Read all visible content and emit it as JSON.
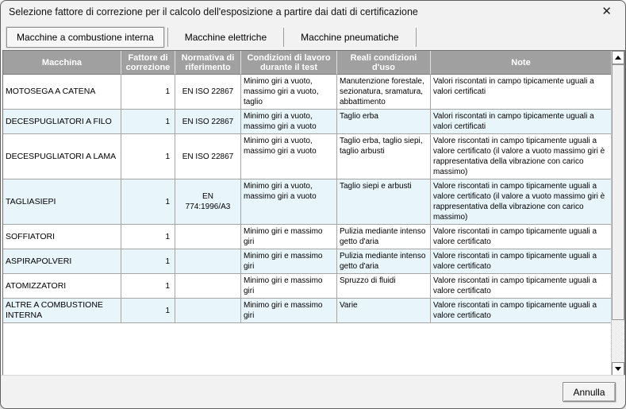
{
  "window": {
    "title": "Selezione fattore di correzione per il calcolo dell'esposizione a partire dai dati di certificazione",
    "close_glyph": "✕"
  },
  "tabs": [
    {
      "label": "Macchine a combustione interna",
      "active": true
    },
    {
      "label": "Macchine elettriche",
      "active": false
    },
    {
      "label": "Macchine pneumatiche",
      "active": false
    }
  ],
  "table": {
    "columns": [
      "Macchina",
      "Fattore di correzione",
      "Normativa di riferimento",
      "Condizioni di lavoro durante il test",
      "Reali condizioni d'uso",
      "Note"
    ],
    "rows": [
      {
        "macchina": "MOTOSEGA A CATENA",
        "fattore": "1",
        "normativa": "EN ISO 22867",
        "condizioni": "Minimo giri a vuoto, massimo giri a vuoto, taglio",
        "reali": "Manutenzione forestale, sezionatura, sramatura, abbattimento",
        "note": "Valori riscontati in campo tipicamente uguali a valori certificati"
      },
      {
        "macchina": "DECESPUGLIATORI A FILO",
        "fattore": "1",
        "normativa": "EN ISO 22867",
        "condizioni": "Minimo giri a vuoto, massimo giri a vuoto",
        "reali": "Taglio erba",
        "note": "Valori riscontati in campo tipicamente uguali a valori certificati"
      },
      {
        "macchina": "DECESPUGLIATORI A LAMA",
        "fattore": "1",
        "normativa": "EN ISO 22867",
        "condizioni": "Minimo giri a vuoto, massimo giri a vuoto",
        "reali": "Taglio erba, taglio siepi, taglio arbusti",
        "note": "Valore riscontati in campo tipicamente uguali a valore certificato (il valore a vuoto massimo giri è rappresentativa della vibrazione con carico massimo)"
      },
      {
        "macchina": "TAGLIASIEPI",
        "fattore": "1",
        "normativa": "EN 774:1996/A3",
        "condizioni": "Minimo giri a vuoto, massimo giri a vuoto",
        "reali": "Taglio siepi e arbusti",
        "note": "Valore riscontati in campo tipicamente uguali a valore certificato (il valore a vuoto massimo giri è rappresentativa della vibrazione con carico massimo)"
      },
      {
        "macchina": "SOFFIATORI",
        "fattore": "1",
        "normativa": "",
        "condizioni": "Minimo giri e massimo giri",
        "reali": "Pulizia mediante intenso getto d'aria",
        "note": "Valore riscontati in campo tipicamente uguali a valore certificato"
      },
      {
        "macchina": "ASPIRAPOLVERI",
        "fattore": "1",
        "normativa": "",
        "condizioni": "Minimo giri e massimo giri",
        "reali": "Pulizia mediante intenso getto d'aria",
        "note": "Valore riscontati in campo tipicamente uguali a valore certificato"
      },
      {
        "macchina": "ATOMIZZATORI",
        "fattore": "1",
        "normativa": "",
        "condizioni": "Minimo giri e massimo giri",
        "reali": "Spruzzo di fluidi",
        "note": "Valore riscontati in campo tipicamente uguali a valore certificato"
      },
      {
        "macchina": "ALTRE A COMBUSTIONE INTERNA",
        "fattore": "1",
        "normativa": "",
        "condizioni": "Minimo giri e massimo giri",
        "reali": "Varie",
        "note": "Valore riscontati in campo tipicamente uguali a valore certificato"
      }
    ]
  },
  "scrollbar": {
    "up_icon": "triangle-up",
    "down_icon": "triangle-down"
  },
  "footer": {
    "cancel_label": "Annulla"
  },
  "colors": {
    "header_bg": "#a0a0a0",
    "row_alt": "#e8f5fb",
    "grid_line": "#a6a6a6",
    "dialog_bg": "#f2f2f2"
  }
}
